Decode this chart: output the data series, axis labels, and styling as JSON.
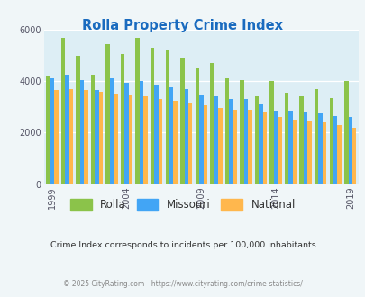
{
  "title": "Rolla Property Crime Index",
  "years": [
    1999,
    2000,
    2001,
    2002,
    2003,
    2004,
    2005,
    2006,
    2007,
    2008,
    2009,
    2010,
    2011,
    2012,
    2013,
    2014,
    2015,
    2016,
    2017,
    2018,
    2019
  ],
  "rolla": [
    4200,
    5700,
    5000,
    4250,
    5450,
    5050,
    5700,
    5300,
    5200,
    4900,
    4500,
    4700,
    4100,
    4050,
    3400,
    4000,
    3550,
    3400,
    3700,
    3350,
    4000
  ],
  "missouri": [
    4100,
    4250,
    4050,
    3650,
    4100,
    3950,
    4000,
    3850,
    3750,
    3700,
    3450,
    3400,
    3300,
    3300,
    3100,
    2850,
    2850,
    2800,
    2750,
    2650,
    2600
  ],
  "national": [
    3650,
    3700,
    3650,
    3600,
    3500,
    3450,
    3400,
    3300,
    3250,
    3150,
    3050,
    2950,
    2900,
    2900,
    2800,
    2600,
    2500,
    2450,
    2400,
    2300,
    2200
  ],
  "rolla_color": "#8bc34a",
  "missouri_color": "#42a5f5",
  "national_color": "#ffb74d",
  "fig_bg_color": "#f0f6f8",
  "plot_bg_color": "#ddeef5",
  "title_color": "#1a6bbf",
  "grid_color": "#ffffff",
  "ylim": [
    0,
    6000
  ],
  "yticks": [
    0,
    2000,
    4000,
    6000
  ],
  "xlabel_years": [
    1999,
    2004,
    2009,
    2014,
    2019
  ],
  "subtitle": "Crime Index corresponds to incidents per 100,000 inhabitants",
  "footer": "© 2025 CityRating.com - https://www.cityrating.com/crime-statistics/",
  "legend_labels": [
    "Rolla",
    "Missouri",
    "National"
  ]
}
